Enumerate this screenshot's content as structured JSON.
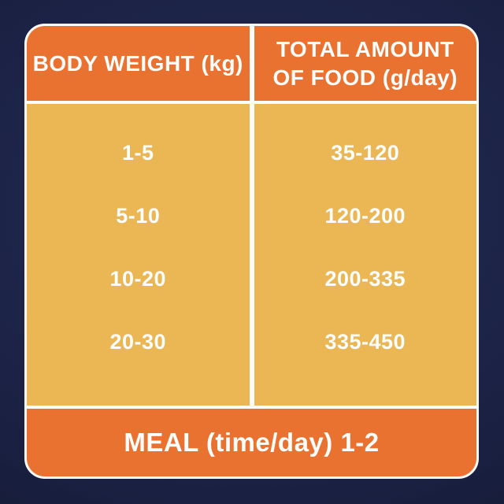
{
  "table": {
    "header": {
      "weight": "BODY WEIGHT (kg)",
      "food_line1": "TOTAL AMOUNT",
      "food_line2": "OF FOOD (g/day)"
    },
    "rows": [
      {
        "weight": "1-5",
        "food": "35-120"
      },
      {
        "weight": "5-10",
        "food": "120-200"
      },
      {
        "weight": "10-20",
        "food": "200-335"
      },
      {
        "weight": "20-30",
        "food": "335-450"
      }
    ],
    "footer": "MEAL (time/day) 1-2"
  },
  "colors": {
    "background_navy": "#1b2245",
    "header_footer_orange": "#e97231",
    "body_gold": "#ebb654",
    "divider_white": "#fcfcfa",
    "text_white": "#fdfdfc"
  },
  "chart_data": {
    "type": "table",
    "title": "Feeding guide table",
    "columns": [
      "BODY WEIGHT (kg)",
      "TOTAL AMOUNT OF FOOD (g/day)"
    ],
    "rows": [
      [
        "1-5",
        "35-120"
      ],
      [
        "5-10",
        "120-200"
      ],
      [
        "10-20",
        "200-335"
      ],
      [
        "20-30",
        "335-450"
      ]
    ],
    "footer_note": "MEAL (time/day) 1-2"
  }
}
